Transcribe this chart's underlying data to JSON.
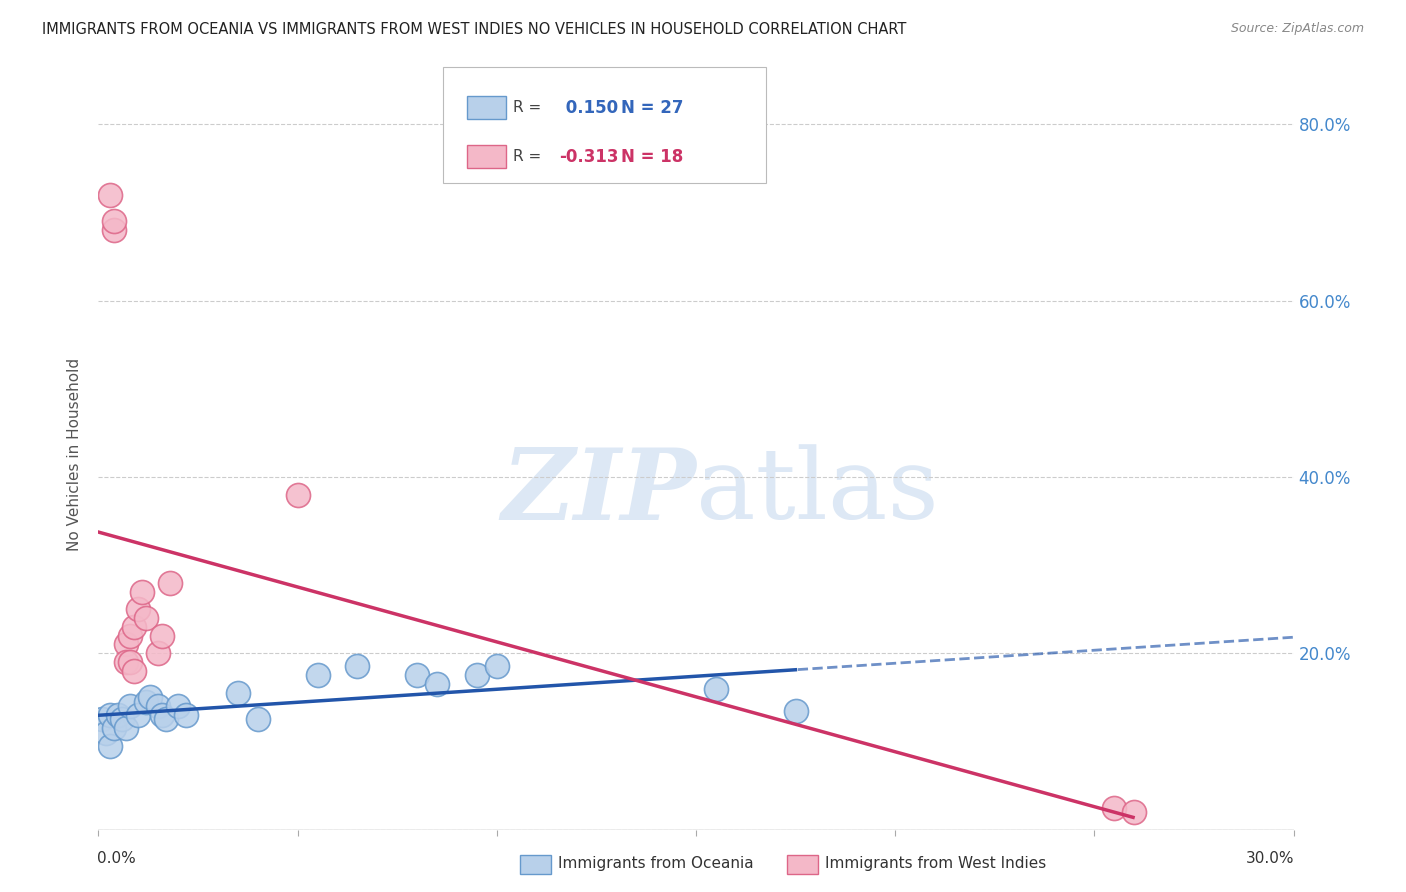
{
  "title": "IMMIGRANTS FROM OCEANIA VS IMMIGRANTS FROM WEST INDIES NO VEHICLES IN HOUSEHOLD CORRELATION CHART",
  "source": "Source: ZipAtlas.com",
  "ylabel": "No Vehicles in Household",
  "xlim": [
    0.0,
    0.3
  ],
  "ylim": [
    0.0,
    0.85
  ],
  "yticks": [
    0.0,
    0.2,
    0.4,
    0.6,
    0.8
  ],
  "ytick_labels": [
    "",
    "20.0%",
    "40.0%",
    "60.0%",
    "80.0%"
  ],
  "xticks": [
    0.0,
    0.05,
    0.1,
    0.15,
    0.2,
    0.25,
    0.3
  ],
  "series1_label": "Immigrants from Oceania",
  "series1_R": 0.15,
  "series1_N": 27,
  "series1_color": "#b8d0ea",
  "series1_edge_color": "#6699cc",
  "series1_line_color": "#2255aa",
  "series1_x": [
    0.001,
    0.002,
    0.003,
    0.003,
    0.004,
    0.005,
    0.006,
    0.007,
    0.008,
    0.01,
    0.012,
    0.013,
    0.015,
    0.016,
    0.017,
    0.02,
    0.022,
    0.035,
    0.04,
    0.055,
    0.065,
    0.08,
    0.085,
    0.095,
    0.1,
    0.155,
    0.175
  ],
  "series1_y": [
    0.125,
    0.11,
    0.095,
    0.13,
    0.115,
    0.13,
    0.125,
    0.115,
    0.14,
    0.13,
    0.145,
    0.15,
    0.14,
    0.13,
    0.125,
    0.14,
    0.13,
    0.155,
    0.125,
    0.175,
    0.185,
    0.175,
    0.165,
    0.175,
    0.185,
    0.16,
    0.135
  ],
  "series2_label": "Immigrants from West Indies",
  "series2_R": -0.313,
  "series2_N": 18,
  "series2_color": "#f4b8c8",
  "series2_edge_color": "#dd6688",
  "series2_line_color": "#cc3366",
  "series2_x": [
    0.003,
    0.004,
    0.004,
    0.007,
    0.007,
    0.008,
    0.008,
    0.009,
    0.009,
    0.01,
    0.011,
    0.012,
    0.015,
    0.016,
    0.018,
    0.05,
    0.255,
    0.26
  ],
  "series2_y": [
    0.72,
    0.68,
    0.69,
    0.21,
    0.19,
    0.22,
    0.19,
    0.23,
    0.18,
    0.25,
    0.27,
    0.24,
    0.2,
    0.22,
    0.28,
    0.38,
    0.025,
    0.02
  ],
  "background_color": "#ffffff",
  "grid_color": "#cccccc",
  "watermark_color": "#dde8f5",
  "legend_R1_color": "#3366bb",
  "legend_R2_color": "#cc3366"
}
